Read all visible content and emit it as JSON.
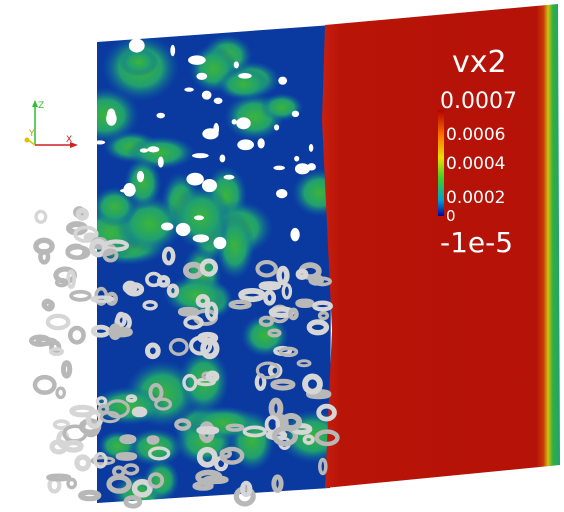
{
  "legend": {
    "title": "vx2",
    "labels": [
      "0.0007",
      "0.0006",
      "0.0004",
      "0.0002",
      "0",
      "-1e-5"
    ]
  },
  "axes": {
    "z": "Z",
    "y": "Y",
    "x": "X"
  }
}
